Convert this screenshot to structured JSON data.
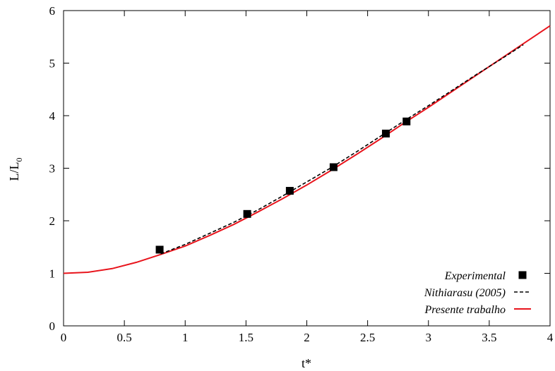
{
  "chart_data": {
    "type": "line",
    "title": "",
    "xlabel": "t*",
    "ylabel": "L/L",
    "ylabel_subscript": "0",
    "xlim": [
      0,
      4
    ],
    "ylim": [
      0,
      6
    ],
    "x_ticks": [
      0,
      0.5,
      1,
      1.5,
      2,
      2.5,
      3,
      3.5,
      4
    ],
    "x_tick_labels": [
      "0",
      "0.5",
      "1",
      "1.5",
      "2",
      "2.5",
      "3",
      "3.5",
      "4"
    ],
    "y_ticks": [
      0,
      1,
      2,
      3,
      4,
      5,
      6
    ],
    "y_tick_labels": [
      "0",
      "1",
      "2",
      "3",
      "4",
      "5",
      "6"
    ],
    "grid": false,
    "legend_position": "bottom-right",
    "series": [
      {
        "name": "Experimental",
        "kind": "scatter",
        "marker": "square",
        "color": "#000000",
        "x": [
          0.79,
          1.51,
          1.86,
          2.22,
          2.65,
          2.82
        ],
        "y": [
          1.45,
          2.13,
          2.57,
          3.02,
          3.66,
          3.89
        ]
      },
      {
        "name": "Nithiarasu (2005)",
        "kind": "line",
        "style": "dashed",
        "color": "#000000",
        "x": [
          0.8,
          1.0,
          1.2,
          1.4,
          1.6,
          1.8,
          2.0,
          2.2,
          2.4,
          2.6,
          2.8,
          3.0,
          3.2,
          3.4,
          3.6,
          3.78
        ],
        "y": [
          1.37,
          1.55,
          1.76,
          1.97,
          2.21,
          2.47,
          2.74,
          3.01,
          3.3,
          3.6,
          3.9,
          4.19,
          4.49,
          4.79,
          5.08,
          5.35
        ]
      },
      {
        "name": "Presente trabalho",
        "kind": "line",
        "style": "solid",
        "color": "#e8141c",
        "x": [
          0.0,
          0.2,
          0.4,
          0.6,
          0.8,
          1.0,
          1.2,
          1.4,
          1.6,
          1.8,
          2.0,
          2.2,
          2.4,
          2.6,
          2.8,
          3.0,
          3.2,
          3.4,
          3.6,
          3.8,
          4.0
        ],
        "y": [
          1.0,
          1.02,
          1.09,
          1.21,
          1.36,
          1.52,
          1.72,
          1.93,
          2.17,
          2.42,
          2.68,
          2.96,
          3.25,
          3.55,
          3.86,
          4.16,
          4.47,
          4.78,
          5.09,
          5.4,
          5.71
        ]
      }
    ]
  }
}
